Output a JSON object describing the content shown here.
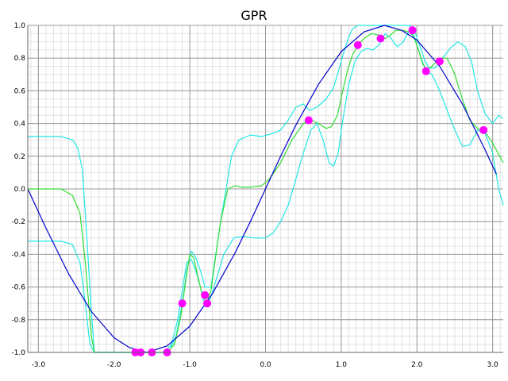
{
  "chart_data": {
    "type": "line",
    "title": "GPR",
    "xlabel": "",
    "ylabel": "",
    "xlim": [
      -3.14,
      3.14
    ],
    "ylim": [
      -1.0,
      1.0
    ],
    "grid": true,
    "legend": "none",
    "x_ticks": [
      "-3.0",
      "-2.0",
      "-1.0",
      "0.0",
      "1.0",
      "2.0",
      "3.0"
    ],
    "x_tick_values": [
      -3,
      -2,
      -1,
      0,
      1,
      2,
      3
    ],
    "y_ticks": [
      "1.0",
      "0.8",
      "0.6",
      "0.4",
      "0.2",
      "0.0",
      "-0.2",
      "-0.4",
      "-0.6",
      "-0.8",
      "-1.0"
    ],
    "y_tick_values": [
      1.0,
      0.8,
      0.6,
      0.4,
      0.2,
      0.0,
      -0.2,
      -0.4,
      -0.6,
      -0.8,
      -1.0
    ],
    "colors": {
      "true_function": "#0000cc",
      "mean": "#33dd33",
      "bounds": "#22e6e6",
      "points": "#ff00ff",
      "grid_minor": "#e2e2e2",
      "grid_major": "#9a9a9a"
    },
    "series": [
      {
        "role": "true_function",
        "x": [
          -3.14,
          -2.9,
          -2.6,
          -2.3,
          -2.0,
          -1.8,
          -1.57,
          -1.3,
          -1.0,
          -0.7,
          -0.4,
          -0.2,
          0.0,
          0.2,
          0.4,
          0.7,
          1.0,
          1.3,
          1.57,
          1.8,
          2.0,
          2.3,
          2.6,
          2.9,
          3.05
        ],
        "y": [
          0.0,
          -0.24,
          -0.52,
          -0.75,
          -0.91,
          -0.97,
          -1.0,
          -0.96,
          -0.84,
          -0.64,
          -0.39,
          -0.2,
          0.0,
          0.2,
          0.39,
          0.64,
          0.84,
          0.96,
          1.0,
          0.97,
          0.91,
          0.75,
          0.52,
          0.24,
          0.09
        ]
      },
      {
        "role": "mean",
        "x": [
          -3.14,
          -2.7,
          -2.55,
          -2.45,
          -2.38,
          -2.3,
          -2.26,
          -2.2,
          -1.3,
          -1.2,
          -1.12,
          -1.05,
          -1.0,
          -0.95,
          -0.85,
          -0.78,
          -0.72,
          -0.6,
          -0.5,
          -0.4,
          -0.32,
          -0.2,
          -0.05,
          0.05,
          0.2,
          0.35,
          0.5,
          0.6,
          0.7,
          0.8,
          0.87,
          0.95,
          1.02,
          1.08,
          1.15,
          1.22,
          1.3,
          1.4,
          1.5,
          1.58,
          1.65,
          1.72,
          1.8,
          1.9,
          1.96,
          2.02,
          2.08,
          2.14,
          2.2,
          2.3,
          2.4,
          2.5,
          2.6,
          2.7,
          2.8,
          2.9,
          3.0,
          3.14
        ],
        "y": [
          0.0,
          0.0,
          -0.04,
          -0.15,
          -0.45,
          -0.9,
          -1.0,
          -1.0,
          -1.0,
          -0.95,
          -0.78,
          -0.55,
          -0.4,
          -0.42,
          -0.62,
          -0.7,
          -0.62,
          -0.22,
          0.0,
          0.02,
          0.01,
          0.01,
          0.02,
          0.06,
          0.16,
          0.3,
          0.4,
          0.42,
          0.4,
          0.37,
          0.38,
          0.45,
          0.6,
          0.72,
          0.82,
          0.88,
          0.92,
          0.95,
          0.94,
          0.92,
          0.94,
          0.97,
          0.97,
          0.96,
          0.93,
          0.85,
          0.76,
          0.73,
          0.75,
          0.8,
          0.8,
          0.7,
          0.55,
          0.42,
          0.37,
          0.35,
          0.28,
          0.16
        ]
      },
      {
        "role": "upper_bound",
        "x": [
          -3.14,
          -2.7,
          -2.55,
          -2.48,
          -2.42,
          -2.38,
          -2.3,
          -2.26,
          -2.2,
          -1.28,
          -1.18,
          -1.1,
          -1.04,
          -0.98,
          -0.92,
          -0.86,
          -0.8,
          -0.72,
          -0.6,
          -0.45,
          -0.35,
          -0.2,
          -0.05,
          0.1,
          0.2,
          0.3,
          0.4,
          0.5,
          0.58,
          0.68,
          0.8,
          0.9,
          1.0,
          1.05,
          1.1,
          1.15,
          1.22,
          1.3,
          1.4,
          1.5,
          1.6,
          1.7,
          1.8,
          1.9,
          1.96,
          2.02,
          2.1,
          2.16,
          2.24,
          2.34,
          2.44,
          2.54,
          2.64,
          2.72,
          2.8,
          2.9,
          3.0,
          3.08,
          3.14
        ],
        "y": [
          0.32,
          0.32,
          0.3,
          0.25,
          0.12,
          -0.15,
          -0.75,
          -1.0,
          -1.0,
          -1.0,
          -0.9,
          -0.7,
          -0.5,
          -0.38,
          -0.42,
          -0.5,
          -0.6,
          -0.6,
          -0.22,
          0.2,
          0.3,
          0.33,
          0.32,
          0.34,
          0.36,
          0.42,
          0.5,
          0.52,
          0.48,
          0.5,
          0.55,
          0.62,
          0.78,
          0.86,
          0.93,
          0.98,
          1.0,
          1.0,
          1.0,
          1.0,
          1.0,
          1.0,
          1.0,
          1.0,
          0.98,
          0.9,
          0.79,
          0.74,
          0.74,
          0.8,
          0.86,
          0.9,
          0.87,
          0.78,
          0.6,
          0.46,
          0.4,
          0.45,
          0.43
        ]
      },
      {
        "role": "lower_bound",
        "x": [
          -3.14,
          -2.7,
          -2.55,
          -2.45,
          -2.38,
          -2.32,
          -2.26,
          -2.2,
          -1.34,
          -1.24,
          -1.16,
          -1.1,
          -1.04,
          -0.98,
          -0.92,
          -0.86,
          -0.8,
          -0.75,
          -0.68,
          -0.55,
          -0.42,
          -0.3,
          -0.15,
          0.0,
          0.1,
          0.2,
          0.3,
          0.4,
          0.5,
          0.6,
          0.68,
          0.76,
          0.84,
          0.9,
          0.96,
          1.02,
          1.1,
          1.18,
          1.26,
          1.34,
          1.42,
          1.5,
          1.58,
          1.66,
          1.74,
          1.82,
          1.9,
          1.96,
          2.04,
          2.12,
          2.2,
          2.3,
          2.4,
          2.5,
          2.6,
          2.7,
          2.8,
          2.9,
          3.0,
          3.08,
          3.14
        ],
        "y": [
          -0.32,
          -0.32,
          -0.34,
          -0.45,
          -0.7,
          -0.95,
          -1.0,
          -1.0,
          -1.0,
          -0.95,
          -0.8,
          -0.62,
          -0.45,
          -0.43,
          -0.5,
          -0.6,
          -0.72,
          -0.7,
          -0.6,
          -0.4,
          -0.3,
          -0.29,
          -0.3,
          -0.3,
          -0.27,
          -0.2,
          -0.1,
          0.06,
          0.22,
          0.36,
          0.4,
          0.3,
          0.16,
          0.14,
          0.22,
          0.42,
          0.64,
          0.78,
          0.84,
          0.86,
          0.85,
          0.88,
          0.95,
          0.92,
          0.87,
          0.9,
          0.97,
          0.94,
          0.82,
          0.72,
          0.7,
          0.6,
          0.48,
          0.36,
          0.26,
          0.27,
          0.36,
          0.34,
          0.22,
          0.0,
          -0.1
        ]
      }
    ],
    "points": {
      "x": [
        -1.72,
        -1.65,
        -1.5,
        -1.3,
        -1.1,
        -0.8,
        -0.77,
        0.57,
        1.22,
        1.52,
        1.94,
        2.12,
        2.3,
        2.88
      ],
      "y": [
        -1.0,
        -1.0,
        -1.0,
        -1.0,
        -0.7,
        -0.65,
        -0.7,
        0.42,
        0.88,
        0.92,
        0.97,
        0.72,
        0.78,
        0.36
      ]
    }
  }
}
